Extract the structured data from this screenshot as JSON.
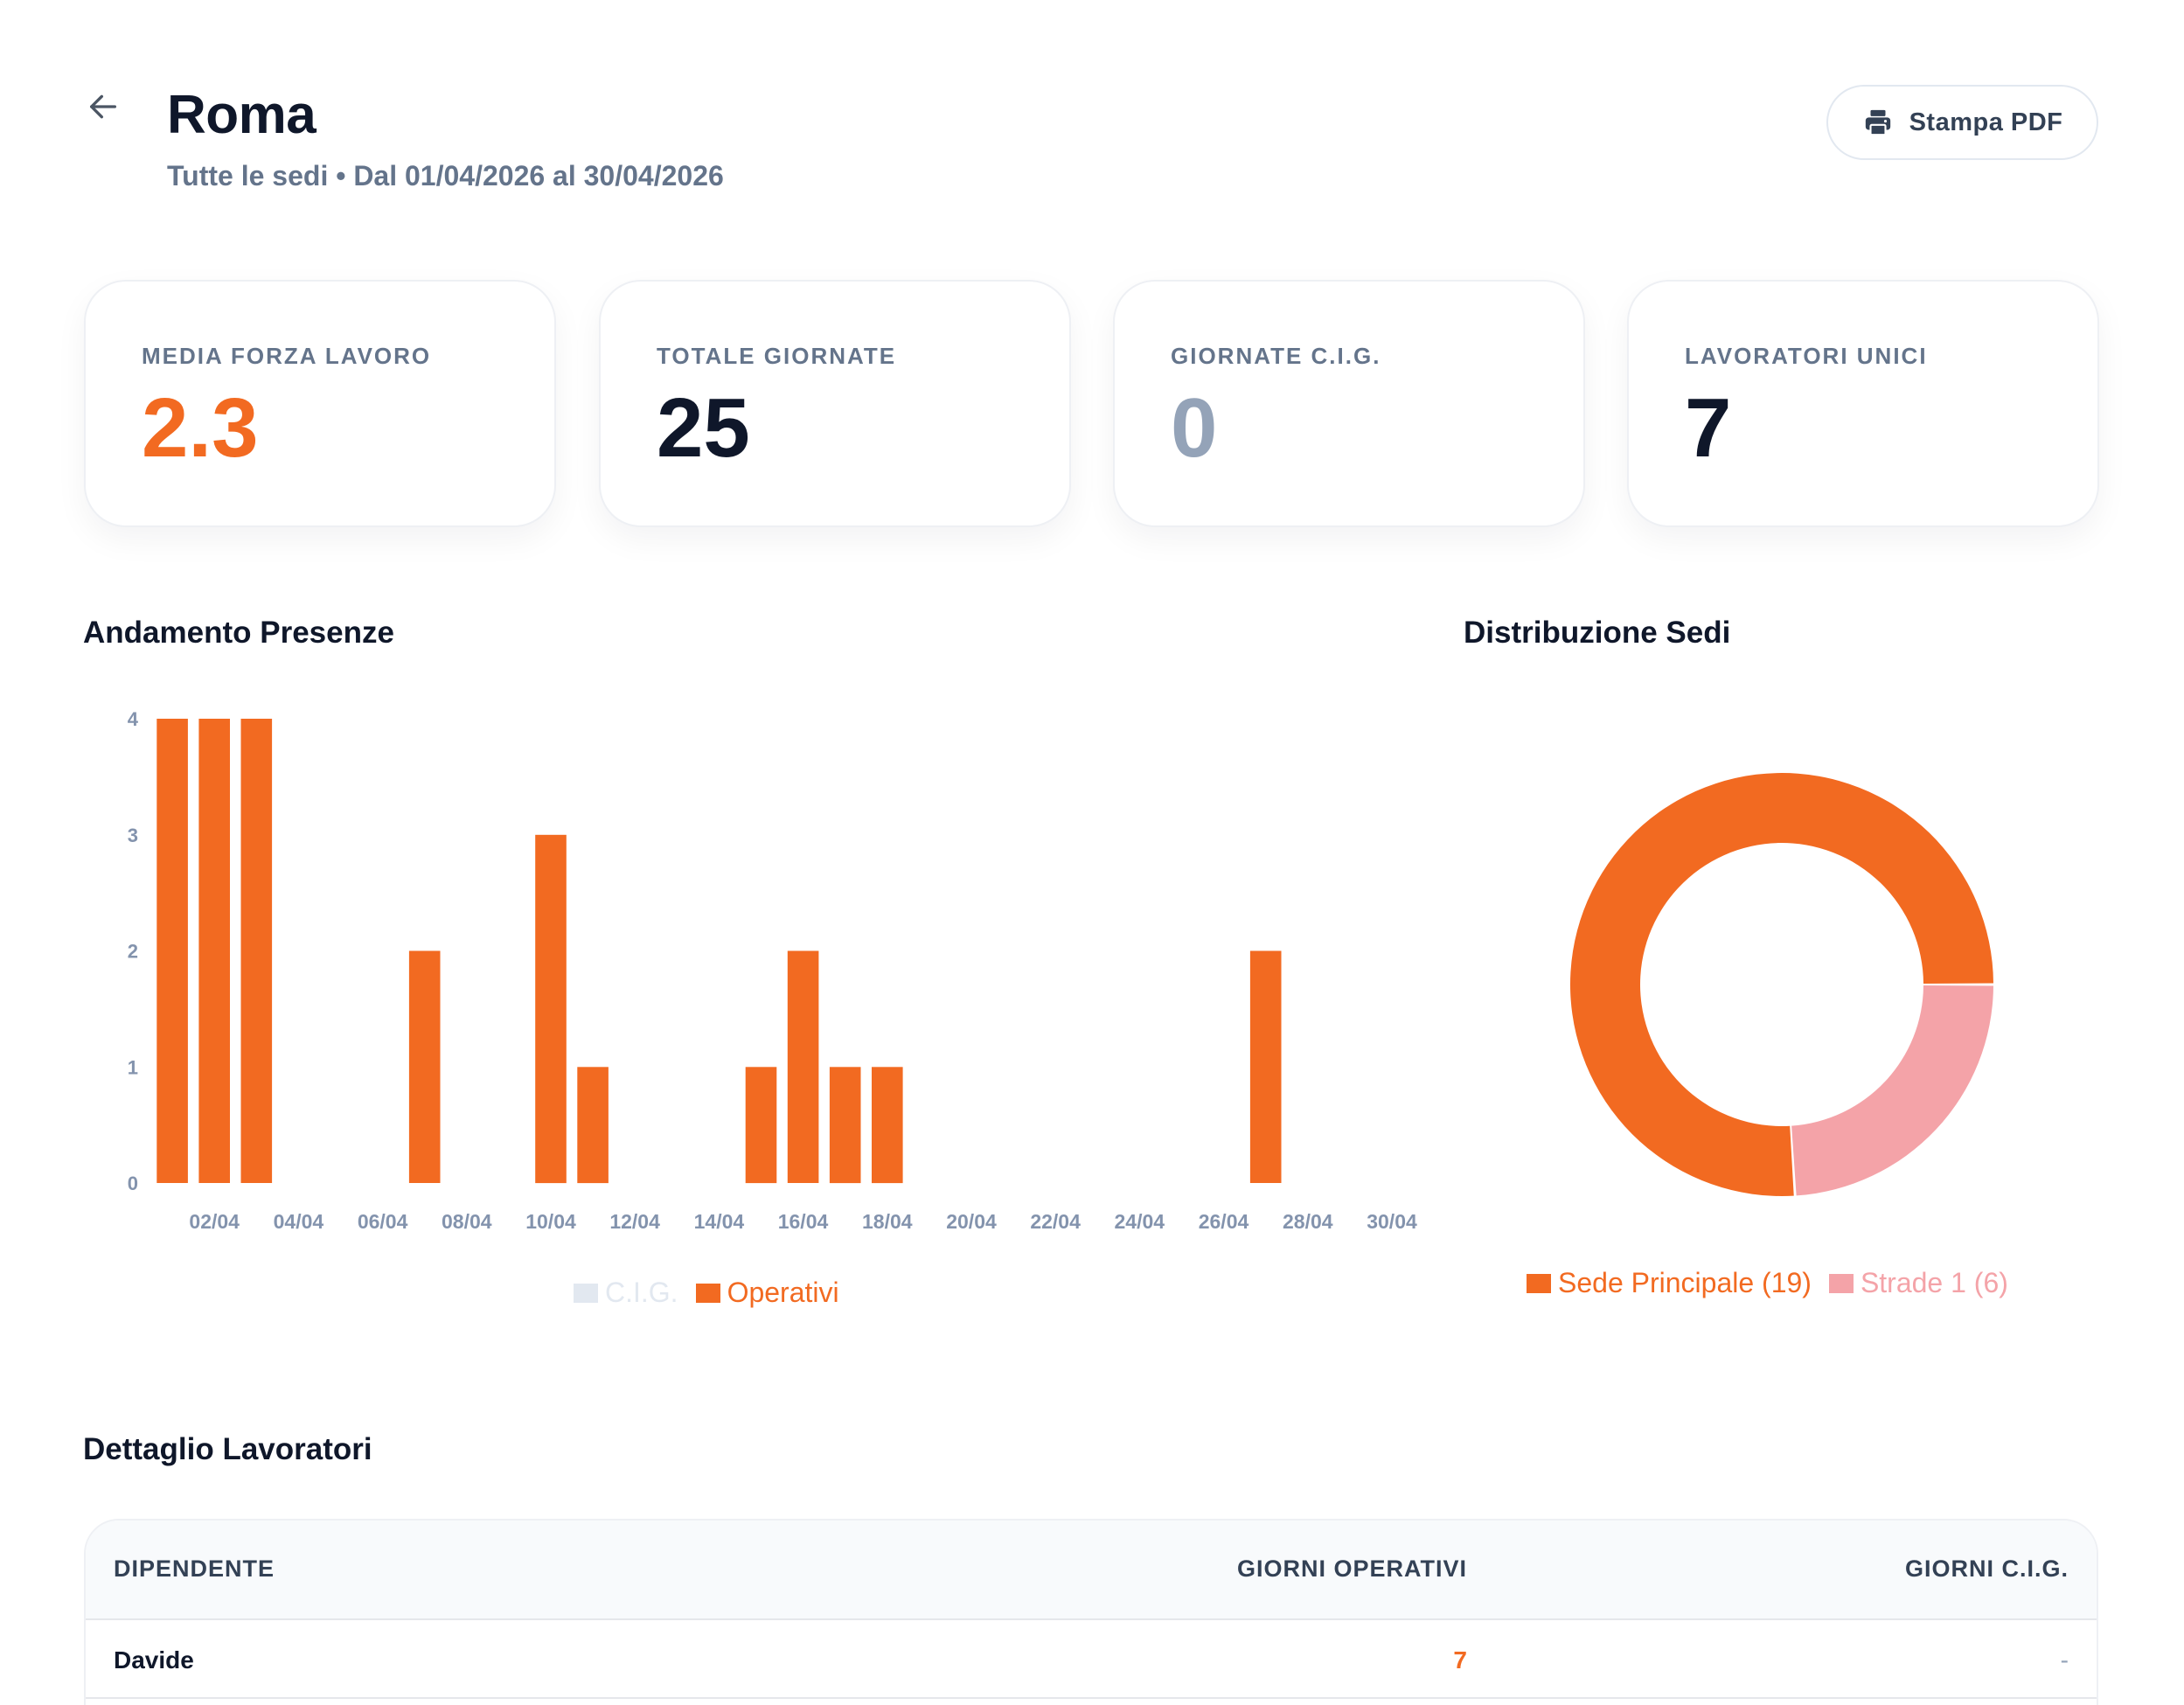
{
  "header": {
    "title": "Roma",
    "subtitle": "Tutte le sedi • Dal 01/04/2026 al 30/04/2026",
    "pdf_label": "Stampa PDF",
    "back_icon": "arrow-left-icon",
    "pdf_icon": "printer-icon"
  },
  "kpis": [
    {
      "label": "MEDIA FORZA LAVORO",
      "value": "2.3",
      "color": "#f26a21"
    },
    {
      "label": "TOTALE GIORNATE",
      "value": "25",
      "color": "#0f172a"
    },
    {
      "label": "GIORNATE C.I.G.",
      "value": "0",
      "color": "#94a3b8"
    },
    {
      "label": "LAVORATORI UNICI",
      "value": "7",
      "color": "#0f172a"
    }
  ],
  "sections": {
    "trend_title": "Andamento Presenze",
    "distribution_title": "Distribuzione Sedi",
    "detail_title": "Dettaglio Lavoratori"
  },
  "colors": {
    "accent": "#f26a21",
    "secondary": "#f4a3a8",
    "cig": "#e2e8f0",
    "axis_text": "#8393ad"
  },
  "chart_data": [
    {
      "type": "bar",
      "title": "Andamento Presenze",
      "categories": [
        "01/04",
        "02/04",
        "03/04",
        "04/04",
        "05/04",
        "06/04",
        "07/04",
        "08/04",
        "09/04",
        "10/04",
        "11/04",
        "12/04",
        "13/04",
        "14/04",
        "15/04",
        "16/04",
        "17/04",
        "18/04",
        "19/04",
        "20/04",
        "21/04",
        "22/04",
        "23/04",
        "24/04",
        "25/04",
        "26/04",
        "27/04",
        "28/04",
        "29/04",
        "30/04"
      ],
      "tick_labels": [
        "02/04",
        "04/04",
        "06/04",
        "08/04",
        "10/04",
        "12/04",
        "14/04",
        "16/04",
        "18/04",
        "20/04",
        "22/04",
        "24/04",
        "26/04",
        "28/04",
        "30/04"
      ],
      "series": [
        {
          "name": "C.I.G.",
          "values": [
            0,
            0,
            0,
            0,
            0,
            0,
            0,
            0,
            0,
            0,
            0,
            0,
            0,
            0,
            0,
            0,
            0,
            0,
            0,
            0,
            0,
            0,
            0,
            0,
            0,
            0,
            0,
            0,
            0,
            0
          ],
          "color": "#e2e8f0"
        },
        {
          "name": "Operativi",
          "values": [
            4,
            4,
            4,
            0,
            0,
            0,
            2,
            0,
            0,
            3,
            1,
            0,
            0,
            0,
            1,
            2,
            1,
            1,
            0,
            0,
            0,
            0,
            0,
            0,
            0,
            0,
            2,
            0,
            0,
            0
          ],
          "color": "#f26a21"
        }
      ],
      "ylim": [
        0,
        4
      ],
      "yticks": [
        0,
        1,
        2,
        3,
        4
      ],
      "stacked": true,
      "legend_position": "bottom",
      "grid": false
    },
    {
      "type": "pie",
      "title": "Distribuzione Sedi",
      "donut": true,
      "slices": [
        {
          "name": "Sede Principale",
          "value": 19,
          "legend": "Sede Principale (19)",
          "color": "#f26a21"
        },
        {
          "name": "Strade 1",
          "value": 6,
          "legend": "Strade 1 (6)",
          "color": "#f4a3a8"
        }
      ],
      "legend_position": "bottom"
    }
  ],
  "table": {
    "headers": [
      "DIPENDENTE",
      "GIORNI OPERATIVI",
      "GIORNI C.I.G."
    ],
    "rows": [
      {
        "name": "Davide",
        "operativi": "7",
        "cig": "-"
      }
    ]
  }
}
